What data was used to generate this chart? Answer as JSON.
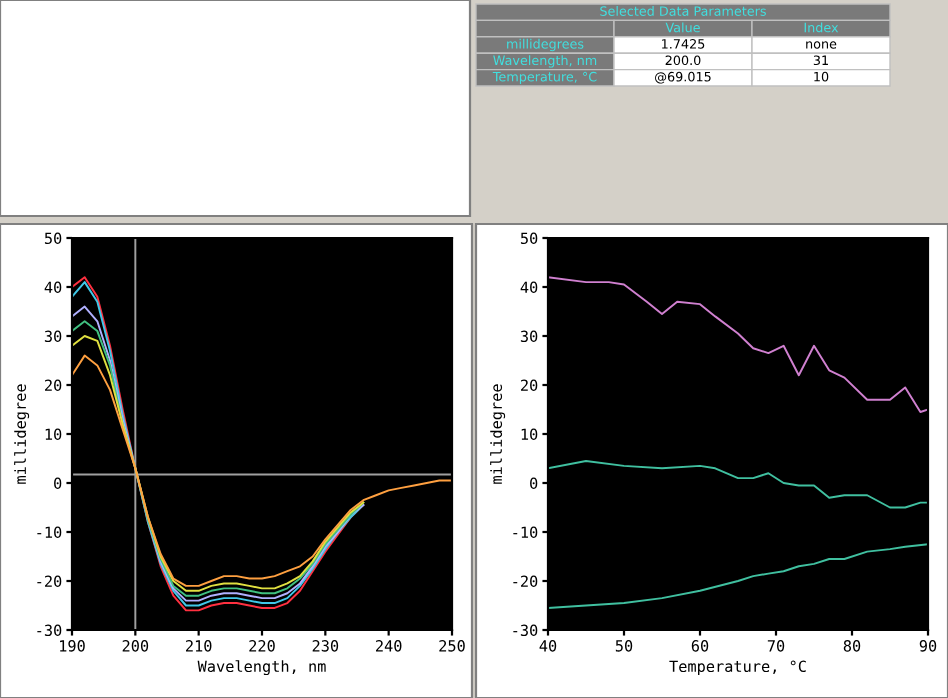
{
  "chart_data": [
    {
      "type": "other",
      "title": "Selected Data Parameters",
      "annotations": [
        "Value",
        "Index",
        "millidegrees",
        "1.7425",
        "none",
        "Wavelength, nm",
        "200.0",
        "31",
        "Temperature, °C",
        "@69.015",
        "10"
      ]
    },
    {
      "type": "line",
      "xlabel": "Wavelength, nm",
      "ylabel": "millidegree",
      "x": [
        190,
        192,
        194,
        196,
        198,
        200,
        202,
        204,
        206,
        208,
        210,
        212,
        214,
        216,
        218,
        220,
        222,
        224,
        226,
        228,
        230,
        232,
        234,
        236,
        238,
        240,
        242,
        244,
        246,
        248,
        250
      ],
      "xlim": [
        190,
        250
      ],
      "xticks": [
        190,
        200,
        210,
        220,
        230,
        240,
        250
      ],
      "ylim": [
        -30,
        50
      ],
      "yticks": [
        -30,
        -20,
        -10,
        0,
        10,
        20,
        30,
        40,
        50
      ],
      "series": [
        {
          "color": "#ff3040",
          "values": [
            40,
            42,
            38,
            28,
            15,
            3,
            -8,
            -17,
            -23,
            -26,
            -26,
            -25,
            -24.5,
            -24.5,
            -25,
            -25.5,
            -25.5,
            -24.5,
            -22,
            -18,
            -14,
            -10.5,
            -7,
            -4.5,
            null,
            null,
            null,
            null,
            null,
            null,
            null
          ]
        },
        {
          "color": "#40c8e8",
          "values": [
            38,
            41,
            37,
            27,
            14,
            3,
            -8,
            -16.5,
            -22,
            -25,
            -25,
            -24,
            -23.5,
            -23.5,
            -24,
            -24.5,
            -24.5,
            -23.5,
            -21,
            -17.5,
            -13.5,
            -10,
            -7,
            -4.5,
            null,
            null,
            null,
            null,
            null,
            null,
            null
          ]
        },
        {
          "color": "#b0b0ff",
          "values": [
            34,
            36,
            33,
            25,
            13,
            3,
            -7.5,
            -16,
            -21.5,
            -24,
            -24,
            -23,
            -22.5,
            -22.5,
            -23,
            -23.5,
            -23.5,
            -22.5,
            -20.5,
            -17,
            -13,
            -10,
            -6.5,
            -4.5,
            null,
            null,
            null,
            null,
            null,
            null,
            null
          ]
        },
        {
          "color": "#40c080",
          "values": [
            31,
            33,
            31,
            24,
            12,
            3,
            -7.5,
            -15.5,
            -21,
            -23,
            -23,
            -22,
            -21.5,
            -21.5,
            -22,
            -22.5,
            -22.5,
            -21.5,
            -19.5,
            -16.5,
            -12.5,
            -9.5,
            -6.5,
            -4,
            null,
            null,
            null,
            null,
            null,
            null,
            null
          ]
        },
        {
          "color": "#e0e040",
          "values": [
            28,
            30,
            29,
            22,
            12,
            3,
            -7,
            -15,
            -20,
            -22,
            -22,
            -21,
            -20.5,
            -20.5,
            -21,
            -21.5,
            -21.5,
            -20.5,
            -19,
            -16,
            -12,
            -9,
            -6,
            -4,
            null,
            null,
            null,
            null,
            null,
            null,
            null
          ]
        },
        {
          "color": "#ffa040",
          "values": [
            22,
            26,
            24,
            19,
            11,
            3,
            -7,
            -14.5,
            -19.5,
            -21,
            -21,
            -20,
            -19,
            -19,
            -19.5,
            -19.5,
            -19,
            -18,
            -17,
            -15,
            -11.5,
            -8.5,
            -5.5,
            -3.5,
            -2.5,
            -1.5,
            -1,
            -0.5,
            0,
            0.5,
            0.5
          ]
        }
      ],
      "ref_lines": [
        {
          "axis": "x",
          "value": 200,
          "color": "#a0a0a0"
        },
        {
          "axis": "y",
          "value": 1.7425,
          "color": "#a0a0a0"
        }
      ]
    },
    {
      "type": "line",
      "xlabel": "Temperature, °C",
      "ylabel": "millidegree",
      "xlim": [
        40,
        90
      ],
      "xticks": [
        40,
        50,
        60,
        70,
        80,
        90
      ],
      "ylim": [
        -30,
        50
      ],
      "yticks": [
        -30,
        -20,
        -10,
        0,
        10,
        20,
        30,
        40,
        50
      ],
      "series": [
        {
          "color": "#d080d0",
          "x": [
            40,
            45,
            48,
            50,
            53,
            55,
            57,
            60,
            62,
            65,
            67,
            69,
            71,
            73,
            75,
            77,
            79,
            82,
            85,
            87,
            89,
            90
          ],
          "values": [
            42,
            41,
            41,
            40.5,
            37,
            34.5,
            37,
            36.5,
            34,
            30.5,
            27.5,
            26.5,
            28,
            22,
            28,
            23,
            21.5,
            17,
            17,
            19.5,
            14.5,
            15
          ]
        },
        {
          "color": "#40c0a0",
          "x": [
            40,
            45,
            50,
            55,
            60,
            62,
            65,
            67,
            69,
            71,
            73,
            75,
            77,
            79,
            82,
            85,
            87,
            89,
            90
          ],
          "values": [
            3,
            4.5,
            3.5,
            3,
            3.5,
            3,
            1,
            1,
            2,
            0,
            -0.5,
            -0.5,
            -3,
            -2.5,
            -2.5,
            -5,
            -5,
            -4,
            -4
          ]
        },
        {
          "color": "#40c0a0",
          "x": [
            40,
            45,
            50,
            55,
            60,
            65,
            67,
            69,
            71,
            73,
            75,
            77,
            79,
            82,
            85,
            87,
            90
          ],
          "values": [
            -25.5,
            -25,
            -24.5,
            -23.5,
            -22,
            -20,
            -19,
            -18.5,
            -18,
            -17,
            -16.5,
            -15.5,
            -15.5,
            -14,
            -13.5,
            -13,
            -12.5
          ]
        }
      ]
    }
  ]
}
